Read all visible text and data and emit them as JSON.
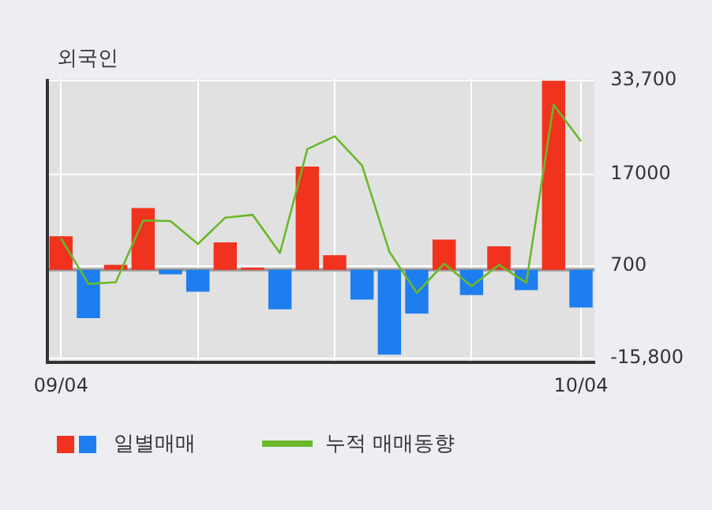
{
  "chart_data": {
    "type": "bar",
    "title": "외국인",
    "categories": [
      "09/04",
      null,
      null,
      null,
      null,
      null,
      null,
      null,
      null,
      null,
      null,
      null,
      null,
      null,
      null,
      null,
      null,
      null,
      null,
      "10/04"
    ],
    "series": [
      {
        "name": "일별매매",
        "colors": [
          "#f0321e",
          "#1e7ef0",
          "#f0321e",
          "#f0321e",
          "#1e7ef0",
          "#1e7ef0",
          "#f0321e",
          "#f0321e",
          "#1e7ef0",
          "#f0321e",
          "#f0321e",
          "#1e7ef0",
          "#1e7ef0",
          "#1e7ef0",
          "#f0321e",
          "#1e7ef0",
          "#f0321e",
          "#1e7ef0",
          "#f0321e",
          "#1e7ef0"
        ],
        "values": [
          6000,
          -8600,
          900,
          11000,
          -800,
          -3900,
          4900,
          400,
          -7000,
          18400,
          2600,
          -5300,
          -15100,
          -7800,
          5400,
          -4500,
          4200,
          -3600,
          33700,
          -6700
        ]
      },
      {
        "name": "누적 매매동향",
        "type": "line",
        "color": "#6ab82a",
        "values": [
          5600,
          -2500,
          -2200,
          8800,
          8700,
          4600,
          9300,
          9800,
          3000,
          21500,
          23800,
          18600,
          3200,
          -4100,
          1100,
          -2900,
          900,
          -2300,
          29400,
          22900
        ]
      }
    ],
    "ylim": [
      -16500,
      34000
    ],
    "yticks": [
      {
        "value": 33700,
        "label": "33,700"
      },
      17000,
      700,
      {
        "value": -15800,
        "label": "-15,800"
      }
    ],
    "grid": true,
    "legend": "bottom left"
  }
}
